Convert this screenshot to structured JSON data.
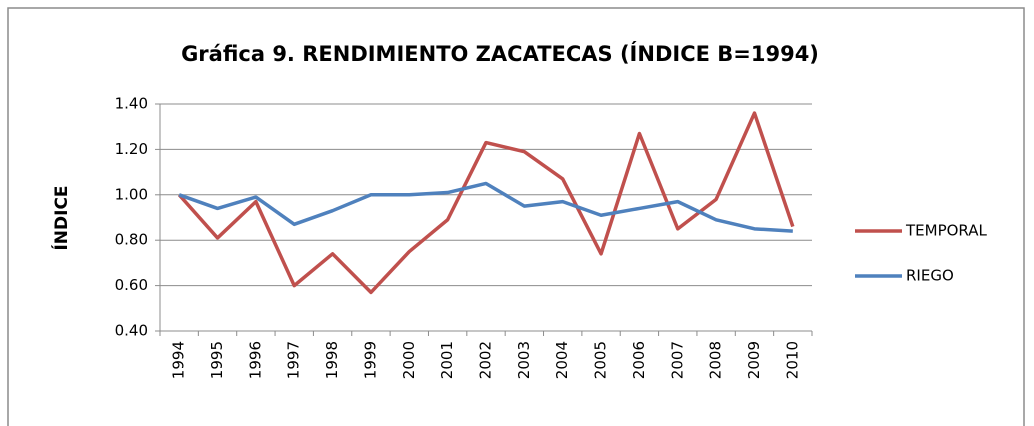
{
  "chart_data": {
    "type": "line",
    "title": "Gráfica 9. RENDIMIENTO ZACATECAS  (ÍNDICE B=1994)",
    "y_label": "ÍNDICE",
    "categories": [
      "1994",
      "1995",
      "1996",
      "1997",
      "1998",
      "1999",
      "2000",
      "2001",
      "2002",
      "2003",
      "2004",
      "2005",
      "2006",
      "2007",
      "2008",
      "2009",
      "2010"
    ],
    "series": [
      {
        "name": "TEMPORAL",
        "color": "#c0504d",
        "values": [
          1.0,
          0.81,
          0.97,
          0.6,
          0.74,
          0.57,
          0.75,
          0.89,
          1.23,
          1.19,
          1.07,
          0.74,
          1.27,
          0.85,
          0.98,
          1.36,
          0.86
        ]
      },
      {
        "name": "RIEGO",
        "color": "#4f81bd",
        "values": [
          1.0,
          0.94,
          0.99,
          0.87,
          0.93,
          1.0,
          1.0,
          1.01,
          1.05,
          0.95,
          0.97,
          0.91,
          0.94,
          0.97,
          0.89,
          0.85,
          0.84
        ]
      }
    ],
    "ylim": [
      0.4,
      1.4
    ],
    "yticks": [
      {
        "value": 0.4,
        "label": "0.40"
      },
      {
        "value": 0.6,
        "label": "0.60"
      },
      {
        "value": 0.8,
        "label": "0.80"
      },
      {
        "value": 1.0,
        "label": "1.00"
      },
      {
        "value": 1.2,
        "label": "1.20"
      },
      {
        "value": 1.4,
        "label": "1.40"
      }
    ],
    "grid": true,
    "legend": "right"
  }
}
